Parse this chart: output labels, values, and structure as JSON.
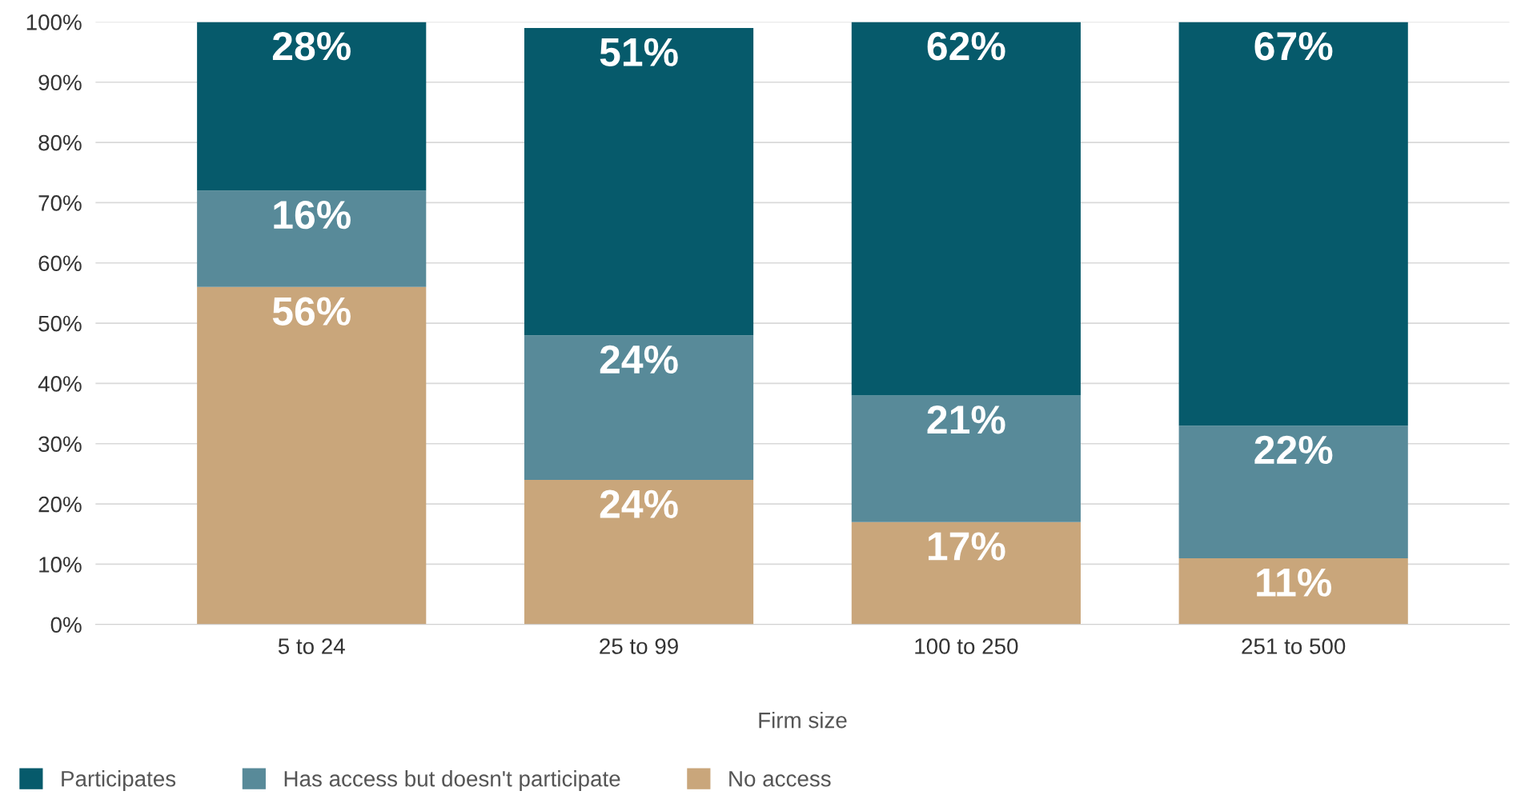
{
  "chart_data": {
    "type": "bar",
    "stacked": true,
    "xlabel": "Firm size",
    "categories": [
      "5 to 24",
      "25 to 99",
      "100 to 250",
      "251 to 500"
    ],
    "series": [
      {
        "name": "No access",
        "color": "#c9a67b",
        "values": [
          56,
          24,
          17,
          11
        ],
        "value_labels": [
          "56%",
          "24%",
          "17%",
          "11%"
        ]
      },
      {
        "name": "Has access but doesn't participate",
        "color": "#588a99",
        "values": [
          16,
          24,
          21,
          22
        ],
        "value_labels": [
          "16%",
          "24%",
          "21%",
          "22%"
        ]
      },
      {
        "name": "Participates",
        "color": "#065a6b",
        "values": [
          28,
          51,
          62,
          67
        ],
        "value_labels": [
          "28%",
          "51%",
          "62%",
          "67%"
        ]
      }
    ],
    "ylim": [
      0,
      100
    ],
    "yticks": [
      {
        "value": 0,
        "label": "0%"
      },
      {
        "value": 10,
        "label": "10%"
      },
      {
        "value": 20,
        "label": "20%"
      },
      {
        "value": 30,
        "label": "30%"
      },
      {
        "value": 40,
        "label": "40%"
      },
      {
        "value": 50,
        "label": "50%"
      },
      {
        "value": 60,
        "label": "60%"
      },
      {
        "value": 70,
        "label": "70%"
      },
      {
        "value": 80,
        "label": "80%"
      },
      {
        "value": 90,
        "label": "90%"
      },
      {
        "value": 100,
        "label": "100%"
      }
    ],
    "grid": "y",
    "legend": "bottom"
  }
}
